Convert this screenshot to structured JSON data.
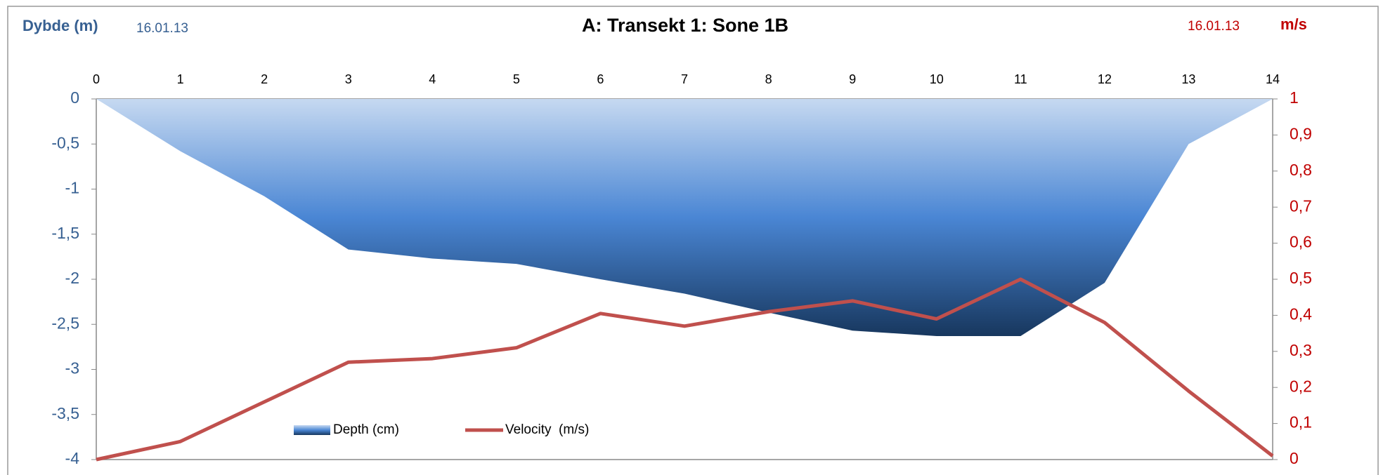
{
  "chart_data": {
    "type": "area",
    "title": "A: Transekt 1: Sone 1B",
    "y_label": "Dybde (m)",
    "y2_label": "m/s",
    "annotations": [
      "16.01.13",
      "16.01.13"
    ],
    "x": [
      0,
      1,
      2,
      3,
      4,
      5,
      6,
      7,
      8,
      9,
      10,
      11,
      12,
      13,
      14
    ],
    "xlim": [
      0,
      14
    ],
    "xticks": [
      0,
      1,
      2,
      3,
      4,
      5,
      6,
      7,
      8,
      9,
      10,
      11,
      12,
      13,
      14
    ],
    "ylim": [
      -4,
      0
    ],
    "yticks": [
      0,
      {
        "value": -0.5,
        "label": "-0,5"
      },
      -1,
      {
        "value": -1.5,
        "label": "-1,5"
      },
      -2,
      {
        "value": -2.5,
        "label": "-2,5"
      },
      -3,
      {
        "value": -3.5,
        "label": "-3,5"
      },
      -4
    ],
    "y2lim": [
      0,
      1
    ],
    "y2ticks": [
      {
        "value": 1,
        "label": "1"
      },
      {
        "value": 0.9,
        "label": "0,9"
      },
      {
        "value": 0.8,
        "label": "0,8"
      },
      {
        "value": 0.7,
        "label": "0,7"
      },
      {
        "value": 0.6,
        "label": "0,6"
      },
      {
        "value": 0.5,
        "label": "0,5"
      },
      {
        "value": 0.4,
        "label": "0,4"
      },
      {
        "value": 0.3,
        "label": "0,3"
      },
      {
        "value": 0.2,
        "label": "0,2"
      },
      {
        "value": 0.1,
        "label": "0,1"
      },
      {
        "value": 0,
        "label": "0"
      }
    ],
    "series": [
      {
        "name": "Depth (cm)",
        "type": "area",
        "colors": [
          "#c6d9f1",
          "#4a86d4",
          "#17375e"
        ],
        "values": [
          0,
          -0.58,
          -1.08,
          -1.67,
          -1.77,
          -1.83,
          -2.0,
          -2.16,
          -2.37,
          -2.57,
          -2.63,
          -2.63,
          -2.04,
          -0.5,
          0
        ]
      },
      {
        "name": "Velocity  (m/s)",
        "type": "line",
        "axis": "y2",
        "color": "#c0504d",
        "values": [
          0,
          0.05,
          0.16,
          0.27,
          0.28,
          0.31,
          0.405,
          0.37,
          0.41,
          0.44,
          0.39,
          0.5,
          0.38,
          0.19,
          0.01
        ]
      }
    ]
  }
}
